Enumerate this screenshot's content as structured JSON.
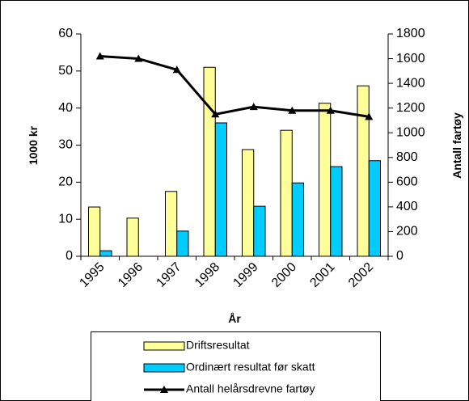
{
  "chart_data": {
    "type": "bar_line",
    "categories": [
      "1995",
      "1996",
      "1997",
      "1998",
      "1999",
      "2000",
      "2001",
      "2002"
    ],
    "x_label": "År",
    "y_label": "1000 kr",
    "y2_label": "Antall fartøy",
    "series": [
      {
        "name": "Driftsresultat",
        "type": "bar",
        "color": "#ffff99",
        "values": [
          13.3,
          10.3,
          17.5,
          51,
          28.8,
          34,
          41.3,
          46
        ]
      },
      {
        "name": "Ordinært resultat før skatt",
        "type": "bar",
        "color": "#00ccff",
        "values": [
          1.5,
          0,
          6.8,
          36,
          13.5,
          19.8,
          24.2,
          25.8
        ]
      },
      {
        "name": "Antall helårsdrevne fartøy",
        "type": "line",
        "axis": "y2",
        "color": "#000000",
        "values": [
          1620,
          1600,
          1510,
          1150,
          1210,
          1180,
          1180,
          1130
        ]
      }
    ],
    "ylim": [
      0,
      60
    ],
    "yticks": [
      0,
      10,
      20,
      30,
      40,
      50,
      60
    ],
    "y2lim": [
      0,
      1800
    ],
    "y2ticks": [
      0,
      200,
      400,
      600,
      800,
      1000,
      1200,
      1400,
      1600,
      1800
    ],
    "grid": false,
    "legend": "bottom"
  }
}
